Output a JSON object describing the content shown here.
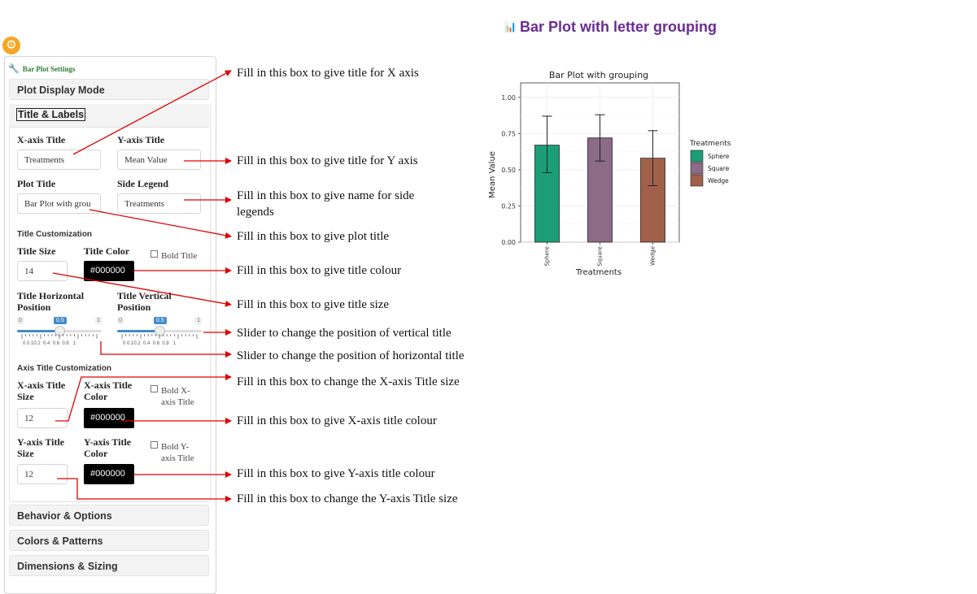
{
  "page_title": "Bar Plot with letter grouping",
  "sidebar": {
    "panel_title": "Bar Plot Settings",
    "accordions": {
      "plot_display_mode": "Plot Display Mode",
      "title_labels": "Title & Labels",
      "behavior_options": "Behavior & Options",
      "colors_patterns": "Colors & Patterns",
      "dimensions_sizing": "Dimensions & Sizing"
    },
    "fields": {
      "x_axis_title_label": "X-axis Title",
      "x_axis_title_value": "Treatments",
      "y_axis_title_label": "Y-axis Title",
      "y_axis_title_value": "Mean Value",
      "plot_title_label": "Plot Title",
      "plot_title_value": "Bar Plot with grou",
      "side_legend_label": "Side Legend",
      "side_legend_value": "Treatments"
    },
    "title_customization": {
      "heading": "Title Customization",
      "title_size_label": "Title Size",
      "title_size_value": "14",
      "title_color_label": "Title Color",
      "title_color_value": "#000000",
      "bold_title_label": "Bold Title",
      "h_pos_label_1": "Title Horizontal",
      "h_pos_label_2": "Position",
      "v_pos_label_1": "Title Vertical",
      "v_pos_label_2": "Position",
      "slider_min": "0",
      "slider_max": "1",
      "slider_value": "0.5",
      "slider_value_fraction": 0.5,
      "tick_labels": [
        "0",
        "0.1",
        "0.2",
        "0.4",
        "0.6",
        "0.8",
        "1"
      ]
    },
    "axis_title_customization": {
      "heading": "Axis Title Customization",
      "x_size_label_1": "X-axis Title",
      "x_size_label_2": "Size",
      "x_size_value": "12",
      "x_color_label_1": "X-axis Title",
      "x_color_label_2": "Color",
      "x_color_value": "#000000",
      "bold_x_label_1": "Bold X-",
      "bold_x_label_2": "axis Title",
      "y_size_label_1": "Y-axis Title",
      "y_size_label_2": "Size",
      "y_size_value": "12",
      "y_color_label_1": "Y-axis Title",
      "y_color_label_2": "Color",
      "y_color_value": "#000000",
      "bold_y_label_1": "Bold Y-",
      "bold_y_label_2": "axis Title"
    }
  },
  "annotations": {
    "x_axis": "Fill in this box to give title for X axis",
    "y_axis": "Fill in this box to give title for Y axis",
    "legend_1": "Fill in this box to give name for side",
    "legend_2": "legends",
    "plot_title": "Fill in this box to give plot title",
    "title_colour": "Fill in this box to give title colour",
    "title_size": "Fill in this box to give title size",
    "slider_vertical": "Slider to change the position of vertical title",
    "slider_horizontal": "Slider to change the position of horizontal title",
    "x_title_size": "Fill in this box to change the X-axis Title size",
    "x_title_colour": "Fill in this box to give X-axis title colour",
    "y_title_colour": "Fill in this box to give Y-axis title colour",
    "y_title_size": "Fill in this box to change the Y-axis Title size"
  },
  "colors": {
    "accent_purple": "#6a2c91",
    "gear_orange": "#f5a623",
    "annotation_red": "#e00000",
    "slider_blue": "#428bca"
  },
  "chart_data": {
    "type": "bar",
    "title": "Bar Plot with grouping",
    "xlabel": "Treatments",
    "ylabel": "Mean Value",
    "categories": [
      "Sphere",
      "Square",
      "Wedge"
    ],
    "values": [
      0.67,
      0.72,
      0.58
    ],
    "error_low": [
      0.48,
      0.56,
      0.39
    ],
    "error_high": [
      0.87,
      0.88,
      0.77
    ],
    "colors": [
      "#1b9e77",
      "#8c6b86",
      "#a0604a"
    ],
    "ylim": [
      0,
      1.1
    ],
    "yticks": [
      "0.00",
      "0.25",
      "0.50",
      "0.75",
      "1.00"
    ],
    "ytick_values": [
      0,
      0.25,
      0.5,
      0.75,
      1.0
    ],
    "legend_title": "Treatments",
    "legend": [
      "Sphere",
      "Square",
      "Wedge"
    ],
    "legend_position": "right",
    "grid": true
  }
}
